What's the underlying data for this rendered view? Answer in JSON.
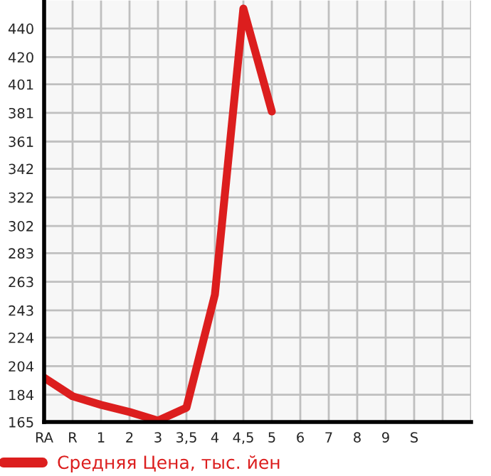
{
  "chart_data": {
    "type": "line",
    "categories": [
      "RA",
      "R",
      "1",
      "2",
      "3",
      "3,5",
      "4",
      "4,5",
      "5",
      "6",
      "7",
      "8",
      "9",
      "S",
      null,
      null
    ],
    "series": [
      {
        "name": "Средняя Цена, тыс. йен",
        "color": "#dc1e1e",
        "values": [
          196,
          183,
          177,
          172,
          166,
          175,
          254,
          454,
          382,
          null,
          null,
          null,
          null,
          null,
          null,
          null
        ]
      }
    ],
    "ylim": [
      165,
      459.6
    ],
    "yticks": [
      165,
      184,
      204,
      224,
      243,
      263,
      283,
      302,
      322,
      342,
      361,
      381,
      401,
      420,
      440
    ],
    "grid": true,
    "legend": "bottom",
    "marker": "none",
    "line_style": "solid"
  }
}
